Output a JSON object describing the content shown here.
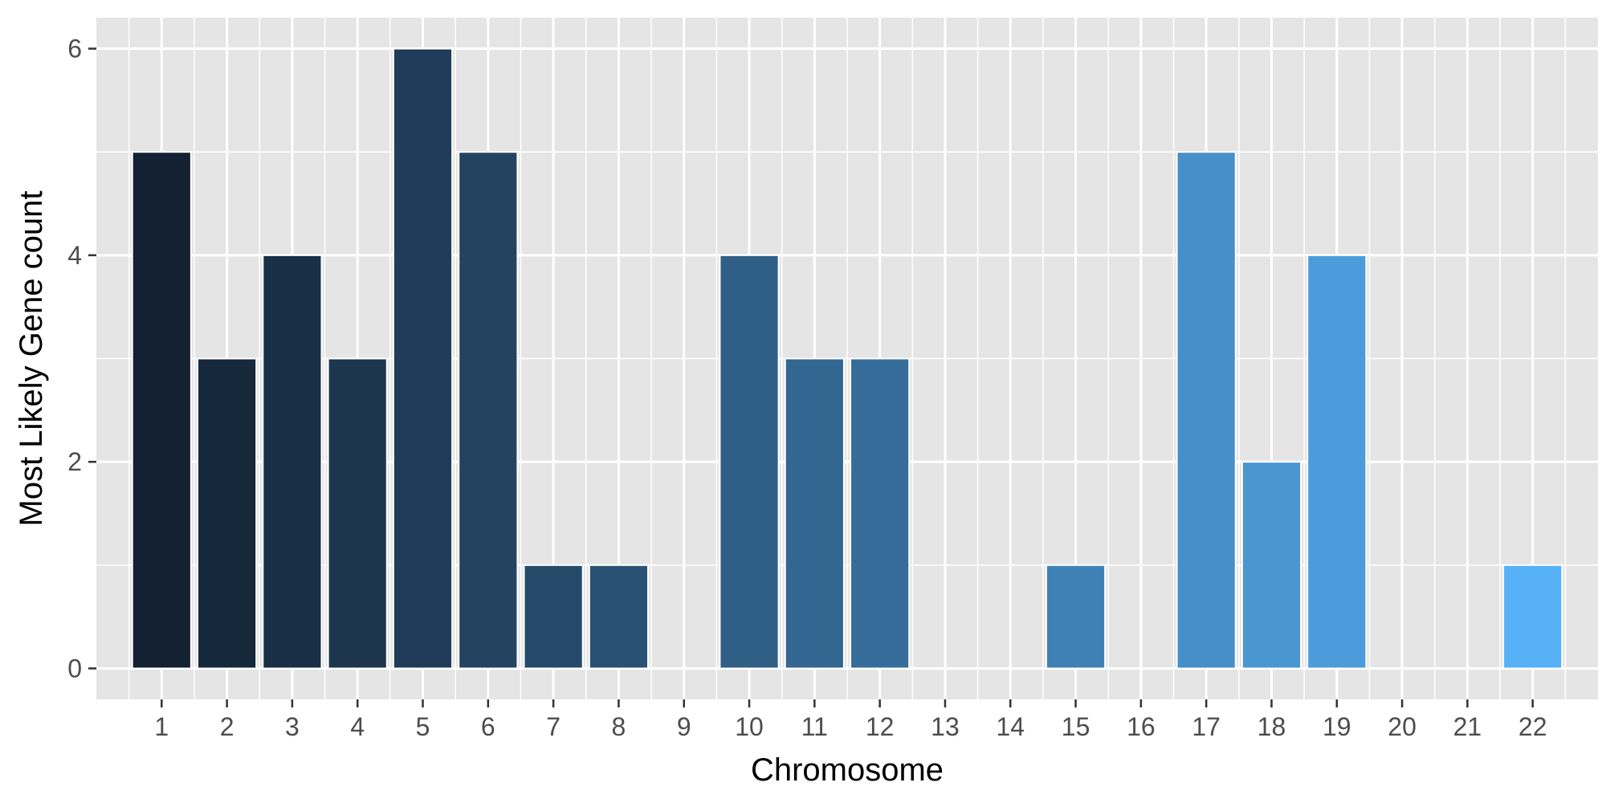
{
  "chart_data": {
    "type": "bar",
    "title": "",
    "xlabel": "Chromosome",
    "ylabel": "Most Likely Gene count",
    "categories": [
      "1",
      "2",
      "3",
      "4",
      "5",
      "6",
      "7",
      "8",
      "9",
      "10",
      "11",
      "12",
      "13",
      "14",
      "15",
      "16",
      "17",
      "18",
      "19",
      "20",
      "21",
      "22"
    ],
    "values": [
      5,
      3,
      4,
      3,
      6,
      5,
      1,
      1,
      0,
      4,
      3,
      3,
      0,
      0,
      1,
      0,
      5,
      2,
      4,
      0,
      0,
      1
    ],
    "ylim": [
      -0.3,
      6.3
    ],
    "yticks": [
      0,
      2,
      4,
      6
    ],
    "grid": true,
    "legend": "none",
    "fill_gradient": {
      "low": "#132132",
      "high": "#56b1f7"
    }
  },
  "colors": {
    "panel_background": "#e5e5e5",
    "grid_major": "#ffffff",
    "grid_minor": "#f2f2f2",
    "bar_outline": "#ffffff",
    "tick_text": "#4d4d4d",
    "axis_title_text": "#000000"
  }
}
